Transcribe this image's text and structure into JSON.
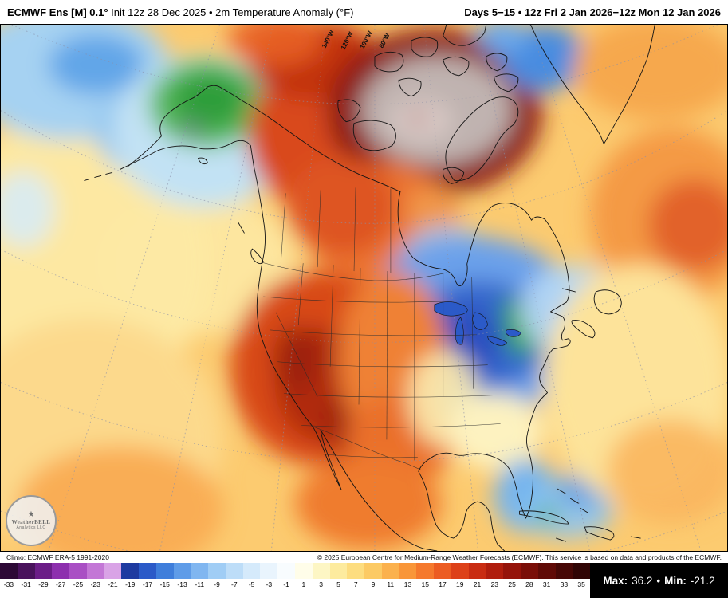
{
  "header": {
    "left_bold": "ECMWF Ens [M] 0.1°",
    "left_rest": " Init 12z 28 Dec 2025 • 2m Temperature Anomaly (°F)",
    "right": "Days 5−15 • 12z Fri 2 Jan 2026−12z Mon 12 Jan 2026"
  },
  "map": {
    "lon_labels": [
      "140°W",
      "120°W",
      "100°W",
      "80°W"
    ],
    "logo": {
      "star": "★",
      "line1": "WeatherBELL",
      "line2": "Analytics LLC"
    }
  },
  "attribution": {
    "left": "Climo: ECMWF ERA-5 1991-2020",
    "right": "© 2025 European Centre for Medium-Range Weather Forecasts (ECMWF). This service is based on data and products of the ECMWF."
  },
  "colorbar": {
    "labels": [
      "-33",
      "-31",
      "-29",
      "-27",
      "-25",
      "-23",
      "-21",
      "-19",
      "-17",
      "-15",
      "-13",
      "-11",
      "-9",
      "-7",
      "-5",
      "-3",
      "-1",
      "1",
      "3",
      "5",
      "7",
      "9",
      "11",
      "13",
      "15",
      "17",
      "19",
      "21",
      "23",
      "25",
      "28",
      "31",
      "33",
      "35"
    ],
    "colors": [
      "#2d0936",
      "#49125c",
      "#6b1d87",
      "#8d2fae",
      "#a94fc4",
      "#c377d6",
      "#d9a3e6",
      "#1e3aa0",
      "#2b5ac8",
      "#3f7edb",
      "#5f9ce8",
      "#80b6f0",
      "#a0cdf5",
      "#bdddf8",
      "#d5eafb",
      "#e9f4fd",
      "#f8fcfe",
      "#fffde9",
      "#fdf6c4",
      "#fdeb9e",
      "#fddd7f",
      "#fcca64",
      "#fbb14d",
      "#f99639",
      "#f5792d",
      "#ec5c22",
      "#dd4119",
      "#c92c12",
      "#b01d0d",
      "#95130a",
      "#7a0e08",
      "#600a06",
      "#470705",
      "#300404"
    ]
  },
  "stats": {
    "max_label": "Max:",
    "max_value": "36.2",
    "bullet": "•",
    "min_label": "Min:",
    "min_value": "-21.2"
  }
}
